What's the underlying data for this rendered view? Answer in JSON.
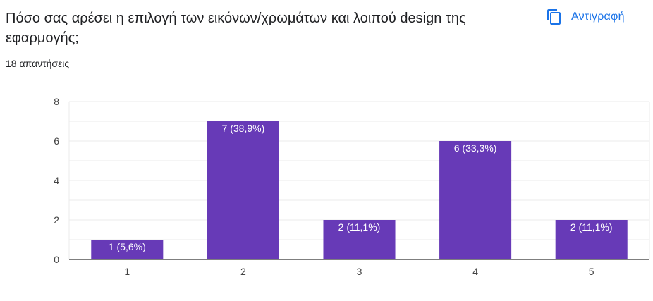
{
  "question": {
    "title": "Πόσο σας αρέσει η επιλογή των εικόνων/χρωμάτων και λοιπού design της εφαρμογής;",
    "response_count": "18 απαντήσεις"
  },
  "actions": {
    "copy_label": "Αντιγραφή",
    "copy_icon": "copy-icon"
  },
  "colors": {
    "bar": "#673ab7",
    "accent": "#1a73e8",
    "text": "#202124",
    "grid": "#ebebeb",
    "baseline": "#333333",
    "bar_label": "#ffffff"
  },
  "chart_data": {
    "type": "bar",
    "categories": [
      "1",
      "2",
      "3",
      "4",
      "5"
    ],
    "values": [
      1,
      7,
      2,
      6,
      2
    ],
    "data_labels": [
      "1 (5,6%)",
      "7 (38,9%)",
      "2 (11,1%)",
      "6 (33,3%)",
      "2 (11,1%)"
    ],
    "title": "",
    "xlabel": "",
    "ylabel": "",
    "ylim": [
      0,
      8
    ],
    "yticks": [
      0,
      2,
      4,
      6,
      8
    ],
    "grid": true,
    "legend": "none"
  }
}
